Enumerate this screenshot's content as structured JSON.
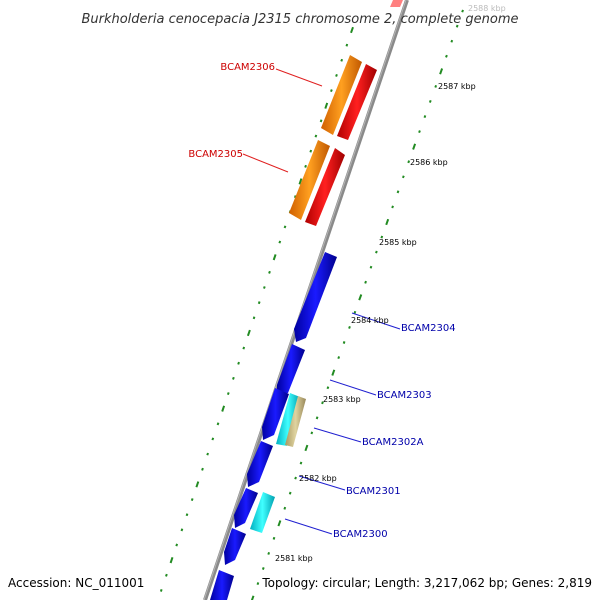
{
  "title": "Burkholderia cenocepacia J2315 chromosome 2, complete genome",
  "footer": {
    "accession": "Accession: NC_011001",
    "summary": "Topology: circular; Length: 3,217,062 bp; Genes: 2,819"
  },
  "colors": {
    "backbone": "#888888",
    "tick": "#228b22",
    "forward_gene": "#ff0000",
    "forward_cds": "#ff8c00",
    "reverse_gene": "#0000ee",
    "reverse_cds": "#00e5ee",
    "misc_feature": "#d2c48c",
    "label_forward": "#cc0000",
    "label_reverse": "#0000aa"
  },
  "kbp_labels": [
    {
      "text": "2588 kbp"
    },
    {
      "text": "2587 kbp"
    },
    {
      "text": "2586 kbp"
    },
    {
      "text": "2585 kbp"
    },
    {
      "text": "2584 kbp"
    },
    {
      "text": "2583 kbp"
    },
    {
      "text": "2582 kbp"
    },
    {
      "text": "2581 kbp"
    }
  ],
  "gene_labels": [
    {
      "text": "BCAM2306",
      "strand": "forward"
    },
    {
      "text": "BCAM2305",
      "strand": "forward"
    },
    {
      "text": "BCAM2304",
      "strand": "reverse"
    },
    {
      "text": "BCAM2303",
      "strand": "reverse"
    },
    {
      "text": "BCAM2302A",
      "strand": "reverse"
    },
    {
      "text": "BCAM2301",
      "strand": "reverse"
    },
    {
      "text": "BCAM2300",
      "strand": "reverse"
    }
  ]
}
